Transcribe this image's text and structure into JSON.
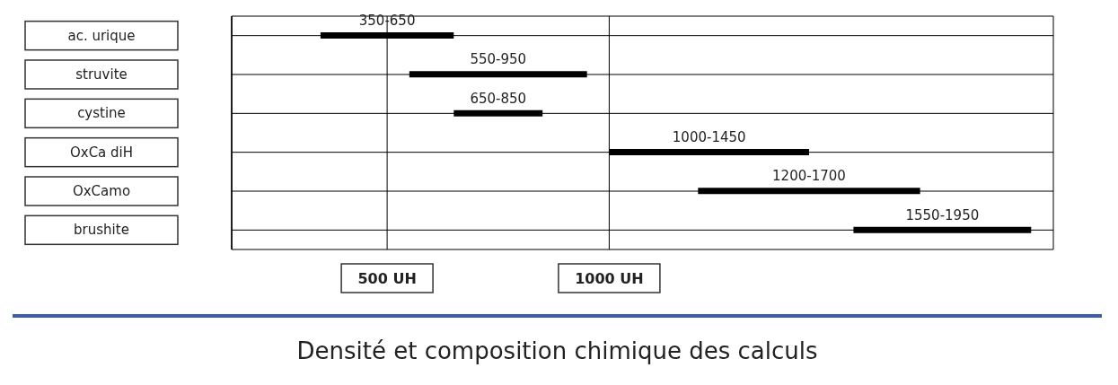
{
  "chart_data": {
    "type": "bar",
    "orientation": "horizontal",
    "title": "Densité et composition chimique des calculs",
    "categories": [
      "ac. urique",
      "struvite",
      "cystine",
      "OxCa diH",
      "OxCamo",
      "brushite"
    ],
    "base": [
      350,
      550,
      650,
      1000,
      1200,
      1550
    ],
    "values": [
      300,
      400,
      200,
      450,
      500,
      400
    ],
    "value_labels": [
      "350-650",
      "550-950",
      "650-850",
      "1000-1450",
      "1200-1700",
      "1550-1950"
    ],
    "color": "#000000",
    "xlim": [
      150,
      2000
    ],
    "xticks": [
      {
        "value": 500,
        "label": "500 UH"
      },
      {
        "value": 1000,
        "label": "1000 UH"
      }
    ],
    "grid": true
  }
}
